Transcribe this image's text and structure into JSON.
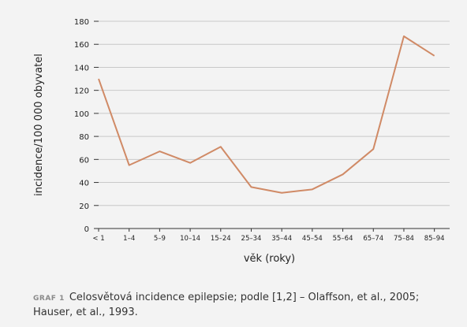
{
  "chart_data": {
    "type": "line",
    "categories": [
      "< 1",
      "1–4",
      "5–9",
      "10–14",
      "15–24",
      "25–34",
      "35–44",
      "45–54",
      "55–64",
      "65–74",
      "75–84",
      "85–94"
    ],
    "values": [
      130,
      55,
      67,
      57,
      71,
      36,
      31,
      34,
      47,
      69,
      167,
      150
    ],
    "xlabel": "věk (roky)",
    "ylabel": "incidence/100 000 obyvatel",
    "ylim": [
      0,
      180
    ],
    "yticks": [
      0,
      20,
      40,
      60,
      80,
      100,
      120,
      140,
      160,
      180
    ],
    "grid": "horizontal",
    "line_color": "#d08a66",
    "grid_color": "#c8c8c8"
  },
  "caption": {
    "tag": "GRAF 1",
    "text": "Celosvětová incidence epilepsie; podle [1,2] – Olaffson, et al., 2005; Hauser, et al., 1993."
  }
}
